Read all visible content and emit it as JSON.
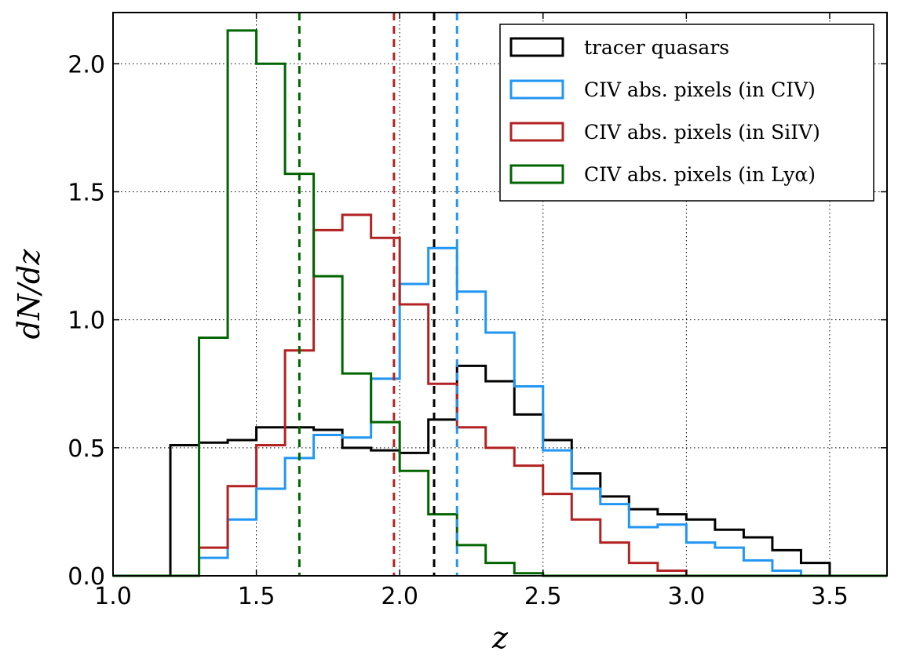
{
  "chart_data": {
    "type": "line",
    "subtype": "step-histogram",
    "title": "",
    "xlabel": "z",
    "ylabel": "dN/dz",
    "xlim": [
      1.0,
      3.7
    ],
    "ylim": [
      0.0,
      2.2
    ],
    "grid": true,
    "legend_position": "top-right",
    "x_ticks": [
      1.0,
      1.5,
      2.0,
      2.5,
      3.0,
      3.5
    ],
    "x_tick_labels": [
      "1.0",
      "1.5",
      "2.0",
      "2.5",
      "3.0",
      "3.5"
    ],
    "y_ticks": [
      0.0,
      0.5,
      1.0,
      1.5,
      2.0
    ],
    "y_tick_labels": [
      "0.0",
      "0.5",
      "1.0",
      "1.5",
      "2.0"
    ],
    "bin_edges": [
      1.0,
      1.1,
      1.2,
      1.3,
      1.4,
      1.5,
      1.6,
      1.7,
      1.8,
      1.9,
      2.0,
      2.1,
      2.2,
      2.3,
      2.4,
      2.5,
      2.6,
      2.7,
      2.8,
      2.9,
      3.0,
      3.1,
      3.2,
      3.3,
      3.4,
      3.5,
      3.6,
      3.7
    ],
    "series": [
      {
        "name": "tracer quasars",
        "color": "#000000",
        "values": [
          0,
          0,
          0.51,
          0.52,
          0.53,
          0.58,
          0.58,
          0.57,
          0.5,
          0.49,
          0.48,
          0.61,
          0.82,
          0.76,
          0.63,
          0.53,
          0.4,
          0.31,
          0.26,
          0.24,
          0.22,
          0.18,
          0.15,
          0.1,
          0.05,
          0,
          0
        ],
        "mean_line": 2.12
      },
      {
        "name": "CIV abs. pixels (in CIV)",
        "color": "#2196f3",
        "values": [
          0,
          0,
          0,
          0.07,
          0.22,
          0.34,
          0.46,
          0.55,
          0.54,
          0.77,
          1.14,
          1.28,
          1.11,
          0.95,
          0.74,
          0.49,
          0.34,
          0.28,
          0.19,
          0.2,
          0.13,
          0.11,
          0.06,
          0.02,
          0,
          0,
          0
        ],
        "mean_line": 2.2
      },
      {
        "name": "CIV abs. pixels (in SiIV)",
        "color": "#b22222",
        "values": [
          0,
          0,
          0,
          0.11,
          0.35,
          0.51,
          0.88,
          1.35,
          1.41,
          1.32,
          1.06,
          0.75,
          0.58,
          0.5,
          0.43,
          0.32,
          0.22,
          0.13,
          0.05,
          0.02,
          0,
          0,
          0,
          0,
          0,
          0,
          0
        ],
        "mean_line": 1.98
      },
      {
        "name": "CIV abs. pixels (in Lyα)",
        "color": "#006400",
        "values": [
          0,
          0,
          0,
          0.93,
          2.13,
          2.0,
          1.57,
          1.17,
          0.79,
          0.6,
          0.41,
          0.24,
          0.12,
          0.05,
          0.01,
          0,
          0,
          0,
          0,
          0,
          0,
          0,
          0,
          0,
          0,
          0,
          0
        ],
        "mean_line": 1.65
      }
    ]
  }
}
